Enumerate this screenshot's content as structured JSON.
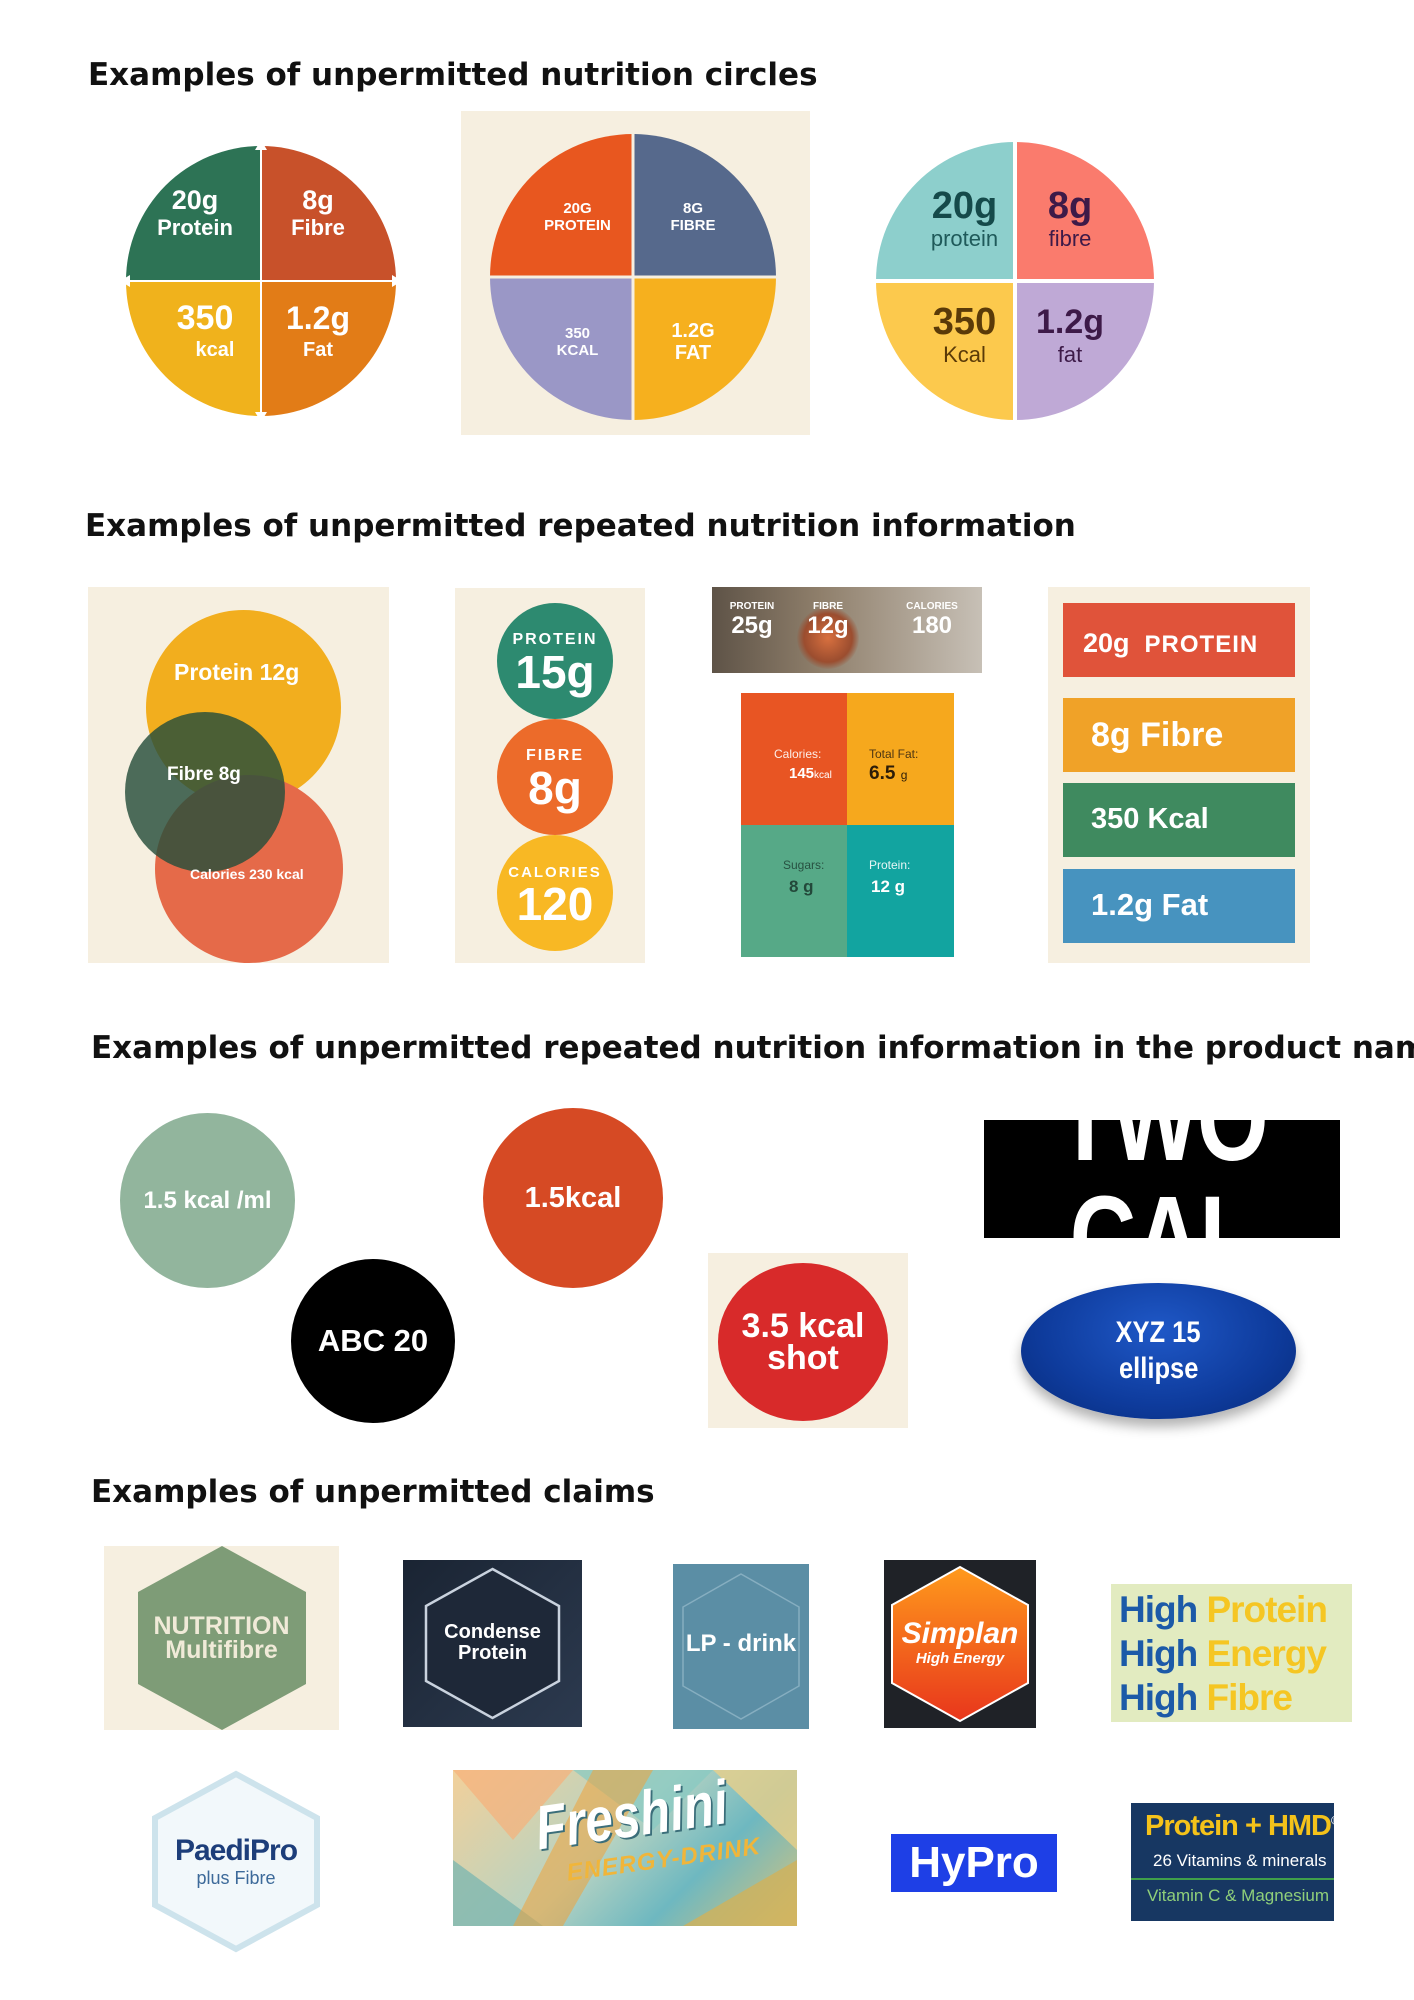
{
  "headings": {
    "circles": "Examples of unpermitted nutrition circles",
    "repeated": "Examples of unpermitted repeated nutrition information",
    "product_name": "Examples of unpermitted repeated nutrition information in the product name",
    "claims": "Examples of unpermitted claims"
  },
  "circle1": {
    "q1a": "20g",
    "q1b": "Protein",
    "q2a": "8g",
    "q2b": "Fibre",
    "q3a": "350",
    "q3b": "kcal",
    "q4a": "1.2g",
    "q4b": "Fat"
  },
  "circle2": {
    "q1a": "20G",
    "q1b": "PROTEIN",
    "q2a": "8G",
    "q2b": "FIBRE",
    "q3a": "350",
    "q3b": "KCAL",
    "q4a": "1.2G",
    "q4b": "FAT"
  },
  "circle3": {
    "q1a": "20g",
    "q1b": "protein",
    "q2a": "8g",
    "q2b": "fibre",
    "q3a": "350",
    "q3b": "Kcal",
    "q4a": "1.2g",
    "q4b": "fat"
  },
  "venn": {
    "protein": "Protein 12g",
    "fibre": "Fibre 8g",
    "calories": "Calories 230 kcal"
  },
  "badges": [
    {
      "label": "PROTEIN",
      "value": "15g"
    },
    {
      "label": "FIBRE",
      "value": "8g"
    },
    {
      "label": "CALORIES",
      "value": "120"
    }
  ],
  "strip": [
    {
      "label": "PROTEIN",
      "value": "25g"
    },
    {
      "label": "FIBRE",
      "value": "12g"
    },
    {
      "label": "CALORIES",
      "value": "180"
    }
  ],
  "grid": {
    "calories_label": "Calories:",
    "calories_value": "145",
    "calories_unit": "kcal",
    "fat_label": "Total Fat:",
    "fat_value": "6.5",
    "fat_unit": "g",
    "sugars_label": "Sugars:",
    "sugars_value": "8 g",
    "protein_label": "Protein:",
    "protein_value": "12 g"
  },
  "bars": {
    "b1a": "20g",
    "b1b": "PROTEIN",
    "b2": "8g Fibre",
    "b3": "350 Kcal",
    "b4": "1.2g Fat"
  },
  "names": {
    "n1": "1.5 kcal /ml",
    "n2": "1.5kcal",
    "n3": "ABC 20",
    "n4a": "3.5 kcal",
    "n4b": "shot",
    "n5": "TWO CAL",
    "n6a": "XYZ 15",
    "n6b": "ellipse"
  },
  "claims": {
    "c1a": "NUTRITION",
    "c1b": "Multifibre",
    "c2a": "Condense",
    "c2b": "Protein",
    "c3": "LP - drink",
    "c4a": "Simplan",
    "c4b": "High Energy",
    "c5_word": "High",
    "c5a": "Protein",
    "c5b": "Energy",
    "c5c": "Fibre",
    "c6a": "PaediPro",
    "c6b": "plus Fibre",
    "c7a": "Freshini",
    "c7b": "ENERGY-DRINK",
    "c8": "HyPro",
    "c9a": "Protein + HMD",
    "c9reg": "®",
    "c9b": "26 Vitamins & minerals",
    "c9c": "Vitamin C & Magnesium"
  }
}
